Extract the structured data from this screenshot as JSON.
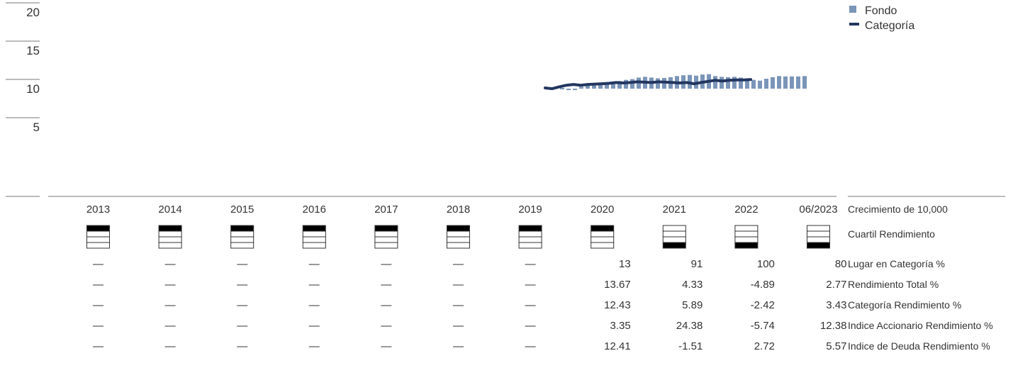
{
  "chart_data": {
    "type": "bar",
    "y_ticks": [
      "20",
      "15",
      "10",
      "5"
    ],
    "ylim": [
      0,
      20
    ],
    "legend": {
      "position": "top-right",
      "fund_label": "Fondo",
      "category_label": "Categoría"
    },
    "colors": {
      "fund": "#7b95b9",
      "category": "#22365f",
      "quartile_fill": "#000000"
    },
    "years": [
      "2013",
      "2014",
      "2015",
      "2016",
      "2017",
      "2018",
      "2019",
      "2020",
      "2021",
      "2022",
      "06/2023"
    ],
    "fund_series": {
      "name": "Fondo",
      "values": [
        10.0,
        9.85,
        9.9,
        10.15,
        10.35,
        10.55,
        10.65,
        10.7,
        10.8,
        10.9,
        11.05,
        11.15,
        11.35,
        11.45,
        11.35,
        11.25,
        11.3,
        11.4,
        11.55,
        11.65,
        11.7,
        11.6,
        11.75,
        11.8,
        11.55,
        11.45,
        11.4,
        11.45,
        11.35,
        11.2,
        11.05,
        10.95,
        11.2,
        11.4,
        11.55,
        11.5,
        11.5,
        11.5,
        11.55
      ]
    },
    "category_series": {
      "name": "Categoría",
      "values": [
        10.0,
        9.9,
        10.15,
        10.35,
        10.45,
        10.35,
        10.45,
        10.5,
        10.55,
        10.6,
        10.7,
        10.65,
        10.7,
        10.8,
        10.75,
        10.7,
        10.8,
        10.75,
        10.7,
        10.65,
        10.7,
        10.55,
        10.7,
        10.85,
        11.0,
        10.9,
        11.0,
        11.05,
        11.05,
        11.1
      ]
    },
    "rows": [
      {
        "label": "Crecimiento de 10,000",
        "kind": "years"
      },
      {
        "label": "Cuartil Rendimiento",
        "kind": "quartile",
        "values": [
          1,
          1,
          1,
          1,
          1,
          1,
          1,
          1,
          4,
          4,
          4
        ]
      },
      {
        "label": "Lugar en Categoría %",
        "values": [
          "—",
          "—",
          "—",
          "—",
          "—",
          "—",
          "—",
          "13",
          "91",
          "100",
          "80"
        ]
      },
      {
        "label": "Rendimiento Total %",
        "values": [
          "—",
          "—",
          "—",
          "—",
          "—",
          "—",
          "—",
          "13.67",
          "4.33",
          "-4.89",
          "2.77"
        ]
      },
      {
        "label": "Categoría Rendimiento %",
        "values": [
          "—",
          "—",
          "—",
          "—",
          "—",
          "—",
          "—",
          "12.43",
          "5.89",
          "-2.42",
          "3.43"
        ]
      },
      {
        "label": "Indice Accionario Rendimiento %",
        "values": [
          "—",
          "—",
          "—",
          "—",
          "—",
          "—",
          "—",
          "3.35",
          "24.38",
          "-5.74",
          "12.38"
        ]
      },
      {
        "label": "Indice de Deuda Rendimiento %",
        "values": [
          "—",
          "—",
          "—",
          "—",
          "—",
          "—",
          "—",
          "12.41",
          "-1.51",
          "2.72",
          "5.57"
        ]
      }
    ]
  }
}
